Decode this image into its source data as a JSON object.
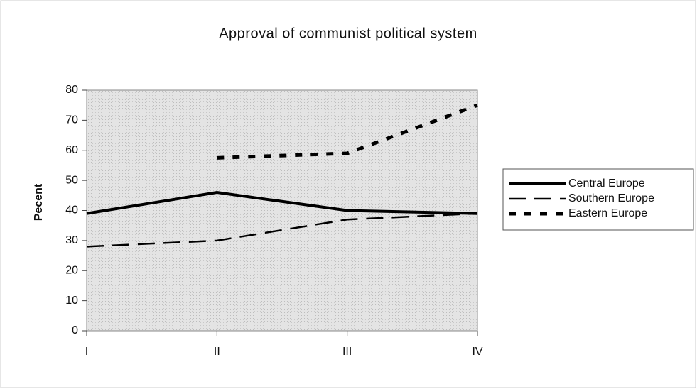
{
  "chart_data": {
    "type": "line",
    "title": "Approval of communist political system",
    "y_label": "Pecent",
    "categories": [
      "I",
      "II",
      "III",
      "IV"
    ],
    "series": [
      {
        "name": "Central Europe",
        "color": "#000000",
        "style": "solid",
        "values": [
          39,
          46,
          40,
          39
        ]
      },
      {
        "name": "Southern Europe",
        "color": "#000000",
        "style": "dashed",
        "values": [
          28,
          30,
          37,
          39
        ]
      },
      {
        "name": "Eastern Europe",
        "color": "#000000",
        "style": "dotted",
        "values": [
          null,
          57.5,
          59,
          75
        ]
      }
    ],
    "ylim": [
      0,
      80
    ],
    "yticks": [
      0,
      10,
      20,
      30,
      40,
      50,
      60,
      70,
      80
    ],
    "legend": "right"
  }
}
